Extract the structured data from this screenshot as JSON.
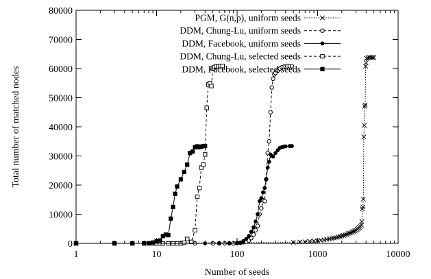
{
  "chart_data": {
    "type": "line",
    "xlabel": "Number of seeds",
    "ylabel": "Total number of matched nodes",
    "xscale": "log",
    "xlim": [
      1,
      10000
    ],
    "ylim": [
      0,
      80000
    ],
    "grid": false,
    "legend_position": "top-right",
    "xticks": [
      {
        "value": 1,
        "label": "1"
      },
      {
        "value": 10,
        "label": "10"
      },
      {
        "value": 100,
        "label": "100"
      },
      {
        "value": 1000,
        "label": "1000"
      },
      {
        "value": 10000,
        "label": "10000"
      }
    ],
    "yticks": [
      {
        "value": 0,
        "label": "0"
      },
      {
        "value": 10000,
        "label": "10000"
      },
      {
        "value": 20000,
        "label": "20000"
      },
      {
        "value": 30000,
        "label": "30000"
      },
      {
        "value": 40000,
        "label": "40000"
      },
      {
        "value": 50000,
        "label": "50000"
      },
      {
        "value": 60000,
        "label": "60000"
      },
      {
        "value": 70000,
        "label": "70000"
      },
      {
        "value": 80000,
        "label": "80000"
      }
    ],
    "series": [
      {
        "name": "PGM, G(n,p), uniform seeds",
        "marker": "x",
        "line_style": "dotted",
        "points": [
          [
            1,
            0
          ],
          [
            500,
            300
          ],
          [
            600,
            450
          ],
          [
            700,
            550
          ],
          [
            800,
            700
          ],
          [
            900,
            800
          ],
          [
            1000,
            900
          ],
          [
            1100,
            1050
          ],
          [
            1200,
            1200
          ],
          [
            1300,
            1400
          ],
          [
            1400,
            1550
          ],
          [
            1500,
            1700
          ],
          [
            1600,
            1850
          ],
          [
            1700,
            2000
          ],
          [
            1800,
            2200
          ],
          [
            1900,
            2400
          ],
          [
            2000,
            2550
          ],
          [
            2100,
            2700
          ],
          [
            2200,
            2900
          ],
          [
            2300,
            3100
          ],
          [
            2400,
            3300
          ],
          [
            2500,
            3500
          ],
          [
            2600,
            3700
          ],
          [
            2700,
            3900
          ],
          [
            2800,
            4100
          ],
          [
            2900,
            4300
          ],
          [
            3000,
            4500
          ],
          [
            3100,
            4800
          ],
          [
            3200,
            5100
          ],
          [
            3300,
            5400
          ],
          [
            3400,
            5800
          ],
          [
            3500,
            6300
          ],
          [
            3550,
            7500
          ],
          [
            3600,
            11800
          ],
          [
            3650,
            12500
          ],
          [
            3700,
            15200
          ],
          [
            3750,
            36500
          ],
          [
            3800,
            40500
          ],
          [
            3850,
            47000
          ],
          [
            3900,
            47500
          ],
          [
            3950,
            60800
          ],
          [
            4000,
            62000
          ],
          [
            4050,
            63500
          ],
          [
            4200,
            63700
          ],
          [
            4400,
            63800
          ],
          [
            4600,
            63800
          ],
          [
            4800,
            63800
          ],
          [
            5000,
            63800
          ]
        ]
      },
      {
        "name": "DDM, Chung-Lu, uniform seeds",
        "marker": "circle-open",
        "line_style": "dashed",
        "points": [
          [
            1,
            0
          ],
          [
            3,
            0
          ],
          [
            5,
            0
          ],
          [
            8,
            0
          ],
          [
            10,
            0
          ],
          [
            15,
            0
          ],
          [
            20,
            0
          ],
          [
            30,
            0
          ],
          [
            50,
            0
          ],
          [
            60,
            0
          ],
          [
            70,
            0
          ],
          [
            80,
            0
          ],
          [
            90,
            0
          ],
          [
            100,
            100
          ],
          [
            110,
            200
          ],
          [
            120,
            400
          ],
          [
            130,
            600
          ],
          [
            140,
            1000
          ],
          [
            150,
            1800
          ],
          [
            160,
            3000
          ],
          [
            170,
            4500
          ],
          [
            180,
            6000
          ],
          [
            190,
            10000
          ],
          [
            200,
            12000
          ],
          [
            210,
            14800
          ],
          [
            220,
            14500
          ],
          [
            230,
            22000
          ],
          [
            240,
            31000
          ],
          [
            250,
            35000
          ],
          [
            260,
            45000
          ],
          [
            270,
            53500
          ],
          [
            280,
            56500
          ],
          [
            290,
            58000
          ],
          [
            300,
            58500
          ],
          [
            320,
            59300
          ],
          [
            340,
            60000
          ],
          [
            360,
            60400
          ],
          [
            380,
            60600
          ],
          [
            400,
            60700
          ],
          [
            420,
            60800
          ],
          [
            450,
            60800
          ],
          [
            480,
            60800
          ]
        ]
      },
      {
        "name": "DDM, Facebook, uniform seeds",
        "marker": "circle-filled",
        "line_style": "solid",
        "points": [
          [
            1,
            0
          ],
          [
            3,
            0
          ],
          [
            5,
            0
          ],
          [
            8,
            0
          ],
          [
            10,
            0
          ],
          [
            20,
            0
          ],
          [
            40,
            0
          ],
          [
            60,
            0
          ],
          [
            80,
            0
          ],
          [
            100,
            0
          ],
          [
            110,
            300
          ],
          [
            120,
            800
          ],
          [
            130,
            1500
          ],
          [
            140,
            2500
          ],
          [
            150,
            4000
          ],
          [
            160,
            5500
          ],
          [
            170,
            7500
          ],
          [
            180,
            10000
          ],
          [
            190,
            14500
          ],
          [
            200,
            15500
          ],
          [
            210,
            17500
          ],
          [
            220,
            19000
          ],
          [
            230,
            22000
          ],
          [
            240,
            26000
          ],
          [
            250,
            28000
          ],
          [
            260,
            30500
          ],
          [
            270,
            30000
          ],
          [
            280,
            29800
          ],
          [
            300,
            31000
          ],
          [
            320,
            32000
          ],
          [
            340,
            32800
          ],
          [
            360,
            33000
          ],
          [
            380,
            33200
          ],
          [
            400,
            33300
          ],
          [
            450,
            33400
          ],
          [
            480,
            33400
          ]
        ]
      },
      {
        "name": "DDM, Chung-Lu, selected seeds",
        "marker": "square-open",
        "line_style": "dashed",
        "points": [
          [
            1,
            0
          ],
          [
            3,
            0
          ],
          [
            5,
            0
          ],
          [
            7,
            0
          ],
          [
            9,
            0
          ],
          [
            10,
            0
          ],
          [
            11,
            0
          ],
          [
            12,
            0
          ],
          [
            14,
            0
          ],
          [
            16,
            0
          ],
          [
            18,
            0
          ],
          [
            20,
            0
          ],
          [
            22,
            200
          ],
          [
            24,
            1500
          ],
          [
            27,
            500
          ],
          [
            30,
            4500
          ],
          [
            32,
            16000
          ],
          [
            34,
            19000
          ],
          [
            36,
            26000
          ],
          [
            38,
            27000
          ],
          [
            40,
            30500
          ],
          [
            42,
            46500
          ],
          [
            44,
            54500
          ],
          [
            46,
            55000
          ],
          [
            48,
            54000
          ],
          [
            50,
            60000
          ],
          [
            52,
            60500
          ],
          [
            55,
            60800
          ],
          [
            58,
            60800
          ],
          [
            62,
            60900
          ],
          [
            66,
            60900
          ]
        ]
      },
      {
        "name": "DDM, Facebook, selected seeds",
        "marker": "square-filled",
        "line_style": "solid",
        "points": [
          [
            1,
            0
          ],
          [
            3,
            0
          ],
          [
            5,
            0
          ],
          [
            7,
            0
          ],
          [
            8,
            0
          ],
          [
            9,
            300
          ],
          [
            10,
            700
          ],
          [
            11,
            1000
          ],
          [
            12,
            2500
          ],
          [
            13,
            3000
          ],
          [
            14,
            2800
          ],
          [
            15,
            8500
          ],
          [
            16,
            12500
          ],
          [
            17,
            17000
          ],
          [
            18,
            19500
          ],
          [
            20,
            22000
          ],
          [
            22,
            24500
          ],
          [
            24,
            27000
          ],
          [
            26,
            31000
          ],
          [
            28,
            31500
          ],
          [
            30,
            33000
          ],
          [
            32,
            33300
          ],
          [
            34,
            33000
          ],
          [
            36,
            33200
          ],
          [
            38,
            33400
          ],
          [
            40,
            33400
          ]
        ]
      }
    ]
  }
}
